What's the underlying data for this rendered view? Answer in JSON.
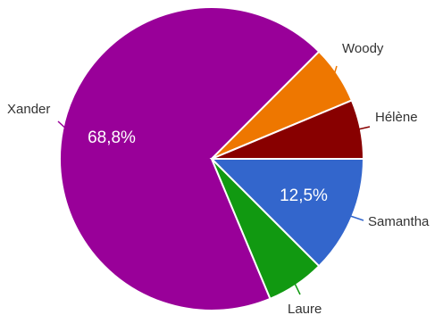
{
  "chart_data": {
    "type": "pie",
    "slices": [
      {
        "label": "Xander",
        "value": 68.8,
        "pct_label": "68,8%",
        "color": "#990099"
      },
      {
        "label": "Woody",
        "value": 6.2,
        "pct_label": "",
        "color": "#ee7700"
      },
      {
        "label": "Hélène",
        "value": 6.3,
        "pct_label": "",
        "color": "#880000"
      },
      {
        "label": "Samantha",
        "value": 12.5,
        "pct_label": "12,5%",
        "color": "#3366cc"
      },
      {
        "label": "Laure",
        "value": 6.2,
        "pct_label": "",
        "color": "#119911"
      }
    ]
  }
}
